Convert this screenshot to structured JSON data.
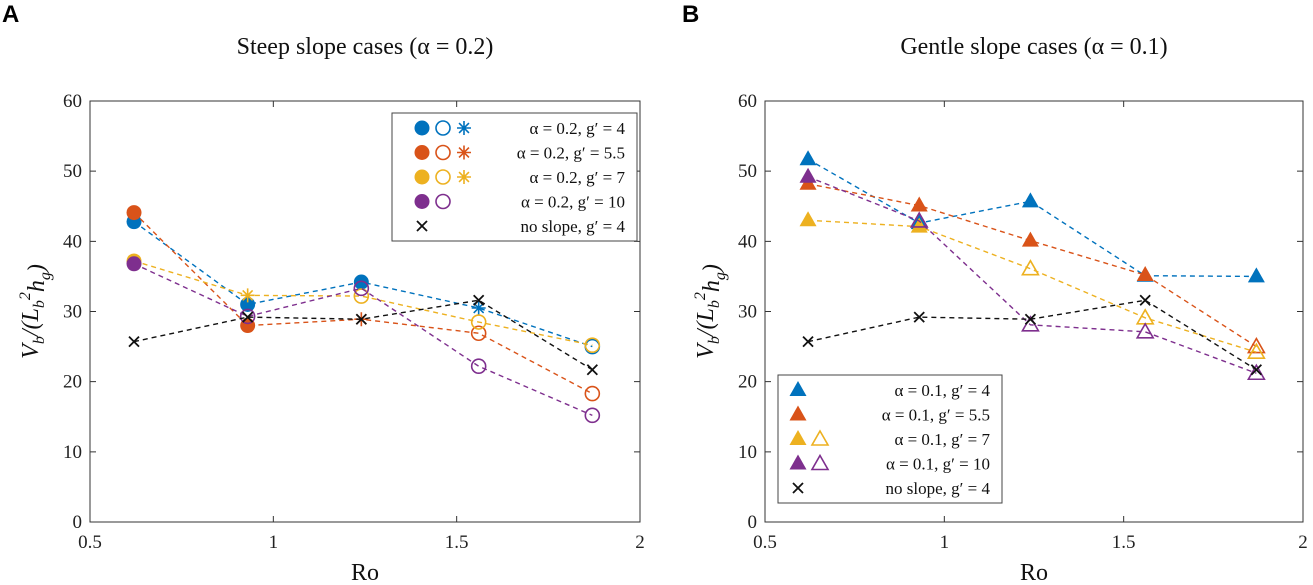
{
  "colors": {
    "blue": "#0072BD",
    "orange": "#D95319",
    "yellow": "#EDB120",
    "purple": "#7E2F8E",
    "black": "#111111"
  },
  "chart_data": [
    {
      "type": "scatter",
      "panel": "A",
      "title": "Steep slope cases (α = 0.2)",
      "xlabel": "Ro",
      "ylabel_parts": [
        "V",
        "b",
        "/(L",
        "b",
        "2",
        "h",
        "g",
        ")"
      ],
      "xlim": [
        0.5,
        2
      ],
      "ylim": [
        0,
        60
      ],
      "xticks": [
        "0.5",
        "1",
        "1.5",
        "2"
      ],
      "xtick_values": [
        0.5,
        1,
        1.5,
        2
      ],
      "yticks": [
        "0",
        "10",
        "20",
        "30",
        "40",
        "50",
        "60"
      ],
      "x": [
        0.62,
        0.93,
        1.24,
        1.56,
        1.87
      ],
      "legend_position": "top-right",
      "series": [
        {
          "name": "α = 0.2, g′ = 4",
          "color": "blue",
          "values": [
            42.8,
            31.0,
            34.2,
            30.5,
            25.0
          ],
          "markers": [
            "fc",
            "fc",
            "fc",
            "st",
            "oc"
          ],
          "legend_markers": [
            "fc",
            "oc",
            "st"
          ]
        },
        {
          "name": "α = 0.2, g′ = 5.5",
          "color": "orange",
          "values": [
            44.1,
            28.0,
            28.9,
            26.9,
            18.3
          ],
          "markers": [
            "fc",
            "fc",
            "st",
            "oc",
            "oc"
          ],
          "legend_markers": [
            "fc",
            "oc",
            "st"
          ]
        },
        {
          "name": "α = 0.2, g′ = 7",
          "color": "yellow",
          "values": [
            37.2,
            32.3,
            32.2,
            28.5,
            25.2
          ],
          "markers": [
            "fc",
            "st",
            "oc",
            "oc",
            "oc"
          ],
          "legend_markers": [
            "fc",
            "oc",
            "st"
          ]
        },
        {
          "name": "α = 0.2, g′ = 10",
          "color": "purple",
          "values": [
            36.8,
            29.3,
            33.3,
            22.2,
            15.2
          ],
          "markers": [
            "fc",
            "oc",
            "oc",
            "oc",
            "oc"
          ],
          "legend_markers": [
            "fc",
            "oc"
          ]
        },
        {
          "name": "no slope, g′ = 4",
          "color": "black",
          "values": [
            25.7,
            29.2,
            28.9,
            31.6,
            21.7
          ],
          "markers": [
            "x",
            "x",
            "x",
            "x",
            "x"
          ],
          "legend_markers": [
            "x"
          ]
        }
      ]
    },
    {
      "type": "scatter",
      "panel": "B",
      "title": "Gentle slope cases (α = 0.1)",
      "xlabel": "Ro",
      "ylabel_parts": [
        "V",
        "b",
        "/(L",
        "b",
        "2",
        "h",
        "g",
        ")"
      ],
      "xlim": [
        0.5,
        2
      ],
      "ylim": [
        0,
        60
      ],
      "xticks": [
        "0.5",
        "1",
        "1.5",
        "2"
      ],
      "xtick_values": [
        0.5,
        1,
        1.5,
        2
      ],
      "yticks": [
        "0",
        "10",
        "20",
        "30",
        "40",
        "50",
        "60"
      ],
      "x": [
        0.62,
        0.93,
        1.24,
        1.56,
        1.87
      ],
      "legend_position": "bottom-left",
      "series": [
        {
          "name": "α = 0.1, g′ = 4",
          "color": "blue",
          "values": [
            51.7,
            42.6,
            45.7,
            35.1,
            35.0
          ],
          "markers": [
            "ft",
            "ft",
            "ft",
            "ft",
            "ft"
          ],
          "legend_markers": [
            "ft"
          ]
        },
        {
          "name": "α = 0.1, g′ = 5.5",
          "color": "orange",
          "values": [
            48.2,
            45.1,
            40.1,
            35.2,
            25.0
          ],
          "markers": [
            "ft",
            "ft",
            "ft",
            "ft",
            "ot"
          ],
          "legend_markers": [
            "ft"
          ]
        },
        {
          "name": "α = 0.1, g′ = 7",
          "color": "yellow",
          "values": [
            43.0,
            42.1,
            36.1,
            29.1,
            24.2
          ],
          "markers": [
            "ft",
            "ft",
            "ot",
            "ot",
            "ot"
          ],
          "legend_markers": [
            "ft",
            "ot"
          ]
        },
        {
          "name": "α = 0.1, g′ = 10",
          "color": "purple",
          "values": [
            49.2,
            42.9,
            28.1,
            27.1,
            21.2
          ],
          "markers": [
            "ft",
            "ot",
            "ot",
            "ot",
            "ot"
          ],
          "legend_markers": [
            "ft",
            "ot"
          ]
        },
        {
          "name": "no slope, g′ = 4",
          "color": "black",
          "values": [
            25.7,
            29.2,
            28.9,
            31.6,
            21.7
          ],
          "markers": [
            "x",
            "x",
            "x",
            "x",
            "x"
          ],
          "legend_markers": [
            "x"
          ]
        }
      ]
    }
  ]
}
